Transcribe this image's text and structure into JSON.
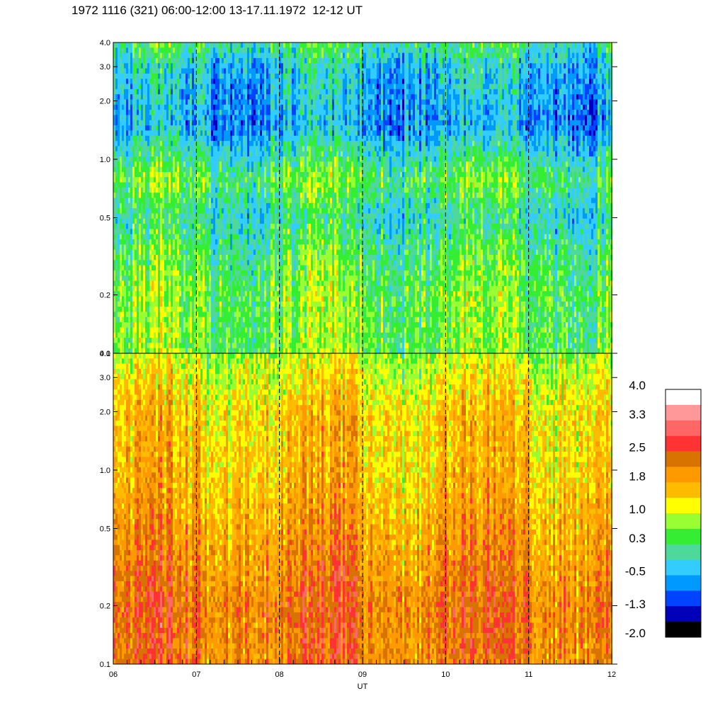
{
  "title": "1972 1116 (321) 06:00-12:00 13-17.11.1972  12-12 UT",
  "chart_data": {
    "type": "heatmap",
    "panels": [
      {
        "name": "",
        "yscale": "log",
        "ylim": [
          0.1,
          4.0
        ],
        "yticks": [
          "0.1",
          "0.2",
          "0.5",
          "1.0",
          "2.0",
          "3.0",
          "4.0"
        ],
        "ytick_values": [
          0.1,
          0.2,
          0.5,
          1.0,
          2.0,
          3.0,
          4.0
        ],
        "profile_levels": [
          {
            "freq": 0.1,
            "level": 0.6
          },
          {
            "freq": 0.2,
            "level": 0.6
          },
          {
            "freq": 0.3,
            "level": 0.4
          },
          {
            "freq": 0.5,
            "level": 0.0
          },
          {
            "freq": 0.8,
            "level": 0.5
          },
          {
            "freq": 1.5,
            "level": -0.6
          },
          {
            "freq": 3.0,
            "level": -0.3
          },
          {
            "freq": 4.0,
            "level": 0.2
          }
        ]
      },
      {
        "name": "",
        "yscale": "log",
        "ylim": [
          0.1,
          4.0
        ],
        "yticks": [
          "0.1",
          "0.2",
          "0.5",
          "1.0",
          "2.0",
          "3.0",
          "4.0"
        ],
        "ytick_values": [
          0.1,
          0.2,
          0.5,
          1.0,
          2.0,
          3.0,
          4.0
        ],
        "profile_levels": [
          {
            "freq": 0.1,
            "level": 2.2
          },
          {
            "freq": 0.2,
            "level": 2.3
          },
          {
            "freq": 0.3,
            "level": 2.1
          },
          {
            "freq": 0.5,
            "level": 1.9
          },
          {
            "freq": 1.0,
            "level": 1.6
          },
          {
            "freq": 2.0,
            "level": 1.5
          },
          {
            "freq": 3.0,
            "level": 1.2
          },
          {
            "freq": 4.0,
            "level": 0.9
          }
        ]
      }
    ],
    "x_ticks": [
      "06",
      "07",
      "08",
      "09",
      "10",
      "11",
      "12"
    ],
    "x_tick_values": [
      6,
      7,
      8,
      9,
      10,
      11,
      12
    ],
    "xlim": [
      6,
      12
    ],
    "xlabel": "UT",
    "hour_markers": [
      7,
      8,
      9,
      10,
      11
    ],
    "colorbar": {
      "labels": [
        "4.0",
        "3.3",
        "2.5",
        "1.8",
        "1.0",
        "0.3",
        "-0.5",
        "-1.3",
        "-2.0"
      ],
      "label_values": [
        4.0,
        3.3,
        2.5,
        1.8,
        1.0,
        0.3,
        -0.5,
        -1.3,
        -2.0
      ],
      "range": [
        -2.0,
        4.0
      ],
      "colors_top_to_bottom": [
        "#ffffff",
        "#ff9999",
        "#ff6666",
        "#ff3333",
        "#d97300",
        "#ff9900",
        "#ffbb00",
        "#ffff00",
        "#99ff33",
        "#33ee33",
        "#4dd999",
        "#33ccff",
        "#0099ff",
        "#0044ff",
        "#0000bb",
        "#000000"
      ]
    }
  }
}
